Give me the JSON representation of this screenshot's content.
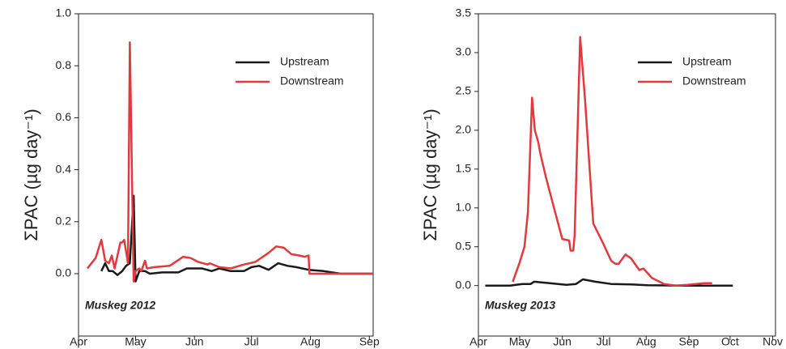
{
  "chart_data": [
    {
      "type": "line",
      "ylabel": "ΣPAC (µg day⁻¹)",
      "annotation": "Muskeg 2012",
      "legend": "upper right",
      "xlim": [
        0,
        155
      ],
      "xticks": [
        {
          "value": 0,
          "label": "Apr"
        },
        {
          "value": 30,
          "label": "May"
        },
        {
          "value": 61,
          "label": "Jun"
        },
        {
          "value": 91,
          "label": "Jul"
        },
        {
          "value": 122,
          "label": "Aug"
        },
        {
          "value": 153,
          "label": "Sep"
        }
      ],
      "ylim": [
        -0.24,
        1.0
      ],
      "yticks": [
        {
          "value": 0,
          "label": "0.0"
        },
        0.2,
        0.4,
        0.6,
        0.8,
        {
          "value": 1,
          "label": "1.0"
        }
      ],
      "series": [
        {
          "name": "Upstream",
          "color": "#1a1a1a",
          "x": [
            12,
            14,
            16,
            18,
            20.5,
            23,
            25,
            27,
            29,
            30,
            32,
            35,
            37.5,
            44,
            52.5,
            57,
            65,
            70,
            74,
            80,
            87,
            91,
            95,
            100,
            105,
            110,
            114.5,
            121,
            129,
            138,
            155
          ],
          "values": [
            0.01,
            0.04,
            0.01,
            0.01,
            -0.005,
            0.01,
            0.03,
            0.04,
            0.3,
            -0.03,
            0.01,
            0.01,
            0,
            0.005,
            0.005,
            0.02,
            0.02,
            0.01,
            0.02,
            0.01,
            0.01,
            0.025,
            0.03,
            0.015,
            0.04,
            0.03,
            0.025,
            0.015,
            0.01,
            0,
            0
          ]
        },
        {
          "name": "Downstream",
          "color": "#e0393e",
          "x": [
            4.7,
            9,
            12,
            14,
            16,
            17.5,
            19,
            22,
            23,
            24,
            26,
            27,
            29,
            30,
            32,
            33,
            35,
            36,
            40,
            48,
            55,
            59,
            63,
            68,
            69,
            74,
            80,
            87,
            93,
            100,
            104,
            108,
            112,
            116,
            119,
            121,
            121.5,
            129,
            155
          ],
          "values": [
            0.02,
            0.06,
            0.13,
            0.05,
            0.04,
            0.07,
            0.02,
            0.12,
            0.12,
            0.13,
            0.04,
            0.89,
            -0.03,
            0.01,
            0.02,
            0.01,
            0.05,
            0.02,
            0.025,
            0.03,
            0.065,
            0.06,
            0.045,
            0.035,
            0.04,
            0.025,
            0.02,
            0.035,
            0.045,
            0.08,
            0.105,
            0.1,
            0.075,
            0.07,
            0.065,
            0.07,
            0,
            0,
            0
          ]
        }
      ]
    },
    {
      "type": "line",
      "ylabel": "ΣPAC (µg day⁻¹)",
      "annotation": "Muskeg 2013",
      "legend": "upper right",
      "xlim": [
        0,
        216
      ],
      "xticks": [
        {
          "value": 0,
          "label": "Apr"
        },
        {
          "value": 30,
          "label": "May"
        },
        {
          "value": 61,
          "label": "Jun"
        },
        {
          "value": 91,
          "label": "Jul"
        },
        {
          "value": 122,
          "label": "Aug"
        },
        {
          "value": 153,
          "label": "Sep"
        },
        {
          "value": 183,
          "label": "Oct"
        },
        {
          "value": 214,
          "label": "Nov"
        }
      ],
      "ylim": [
        -0.65,
        3.5
      ],
      "yticks": [
        {
          "value": 0,
          "label": "0.0"
        },
        0.5,
        {
          "value": 1,
          "label": "1.0"
        },
        1.5,
        {
          "value": 2,
          "label": "2.0"
        },
        2.5,
        {
          "value": 3,
          "label": "3.0"
        },
        3.5
      ],
      "series": [
        {
          "name": "Upstream",
          "color": "#1a1a1a",
          "x": [
            5,
            23,
            32,
            38,
            40.5,
            52,
            64,
            71,
            76,
            85,
            96.5,
            111,
            123,
            152,
            185
          ],
          "values": [
            0,
            0,
            0.02,
            0.02,
            0.05,
            0.03,
            0.01,
            0.02,
            0.08,
            0.05,
            0.02,
            0.015,
            0.005,
            0,
            0
          ]
        },
        {
          "name": "Downstream",
          "color": "#e0393e",
          "x": [
            25,
            30,
            33.5,
            36,
            39,
            41,
            43.5,
            45,
            49,
            55,
            61,
            66,
            67,
            69,
            70,
            74,
            77.5,
            83.5,
            90.5,
            96.5,
            99.5,
            102,
            107,
            111,
            117,
            120,
            126,
            135,
            143.5,
            152,
            164,
            170
          ],
          "values": [
            0.05,
            0.3,
            0.5,
            0.95,
            2.42,
            2.0,
            1.85,
            1.7,
            1.4,
            1.0,
            0.6,
            0.58,
            0.45,
            0.45,
            0.65,
            3.2,
            2.4,
            0.8,
            0.55,
            0.32,
            0.28,
            0.28,
            0.4,
            0.35,
            0.2,
            0.22,
            0.1,
            0.02,
            0,
            0.01,
            0.03,
            0.03
          ]
        }
      ]
    }
  ]
}
